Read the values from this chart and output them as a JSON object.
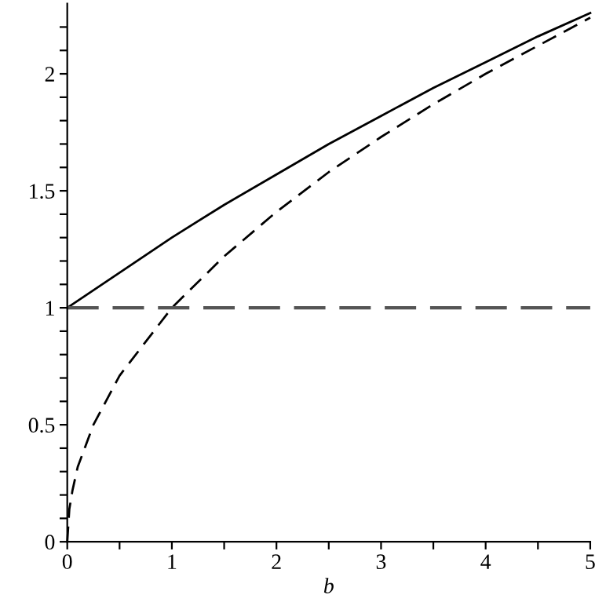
{
  "chart_data": {
    "type": "line",
    "xlabel": "b",
    "xlim": [
      0,
      5
    ],
    "ylim": [
      0,
      2.3
    ],
    "xticks": [
      0,
      {
        "value": 0.5,
        "label": null
      },
      1,
      {
        "value": 1.5,
        "label": null
      },
      2,
      {
        "value": 2.5,
        "label": null
      },
      3,
      {
        "value": 3.5,
        "label": null
      },
      4,
      {
        "value": 4.5,
        "label": null
      },
      5
    ],
    "yticks": [
      0,
      {
        "value": 0.1,
        "label": null
      },
      {
        "value": 0.2,
        "label": null
      },
      {
        "value": 0.3,
        "label": null
      },
      {
        "value": 0.4,
        "label": null
      },
      0.5,
      {
        "value": 0.6,
        "label": null
      },
      {
        "value": 0.7,
        "label": null
      },
      {
        "value": 0.8,
        "label": null
      },
      {
        "value": 0.9,
        "label": null
      },
      1,
      {
        "value": 1.1,
        "label": null
      },
      {
        "value": 1.2,
        "label": null
      },
      {
        "value": 1.3,
        "label": null
      },
      {
        "value": 1.4,
        "label": null
      },
      1.5,
      {
        "value": 1.6,
        "label": null
      },
      {
        "value": 1.7,
        "label": null
      },
      {
        "value": 1.8,
        "label": null
      },
      {
        "value": 1.9,
        "label": null
      },
      2,
      {
        "value": 2.1,
        "label": null
      },
      {
        "value": 2.2,
        "label": null
      }
    ],
    "grid": false,
    "legend": false,
    "marker": "none",
    "series": [
      {
        "color": "#000000",
        "line_style": "solid",
        "x": [
          0,
          0.5,
          1,
          1.5,
          2,
          2.5,
          3,
          3.5,
          4,
          4.5,
          5
        ],
        "values": [
          1,
          1.15,
          1.3,
          1.44,
          1.57,
          1.7,
          1.82,
          1.94,
          2.05,
          2.16,
          2.26
        ]
      },
      {
        "color": "#000000",
        "line_style": "dashed",
        "x": [
          0,
          0.02,
          0.05,
          0.1,
          0.25,
          0.5,
          1,
          1.5,
          2,
          2.5,
          3,
          3.5,
          4,
          4.5,
          5
        ],
        "values": [
          0,
          0.14,
          0.22,
          0.32,
          0.5,
          0.71,
          1,
          1.22,
          1.41,
          1.58,
          1.73,
          1.87,
          2,
          2.12,
          2.24
        ]
      },
      {
        "color": "#555555",
        "line_style": "dashed",
        "x": [
          0,
          5
        ],
        "values": [
          1,
          1
        ]
      }
    ]
  }
}
